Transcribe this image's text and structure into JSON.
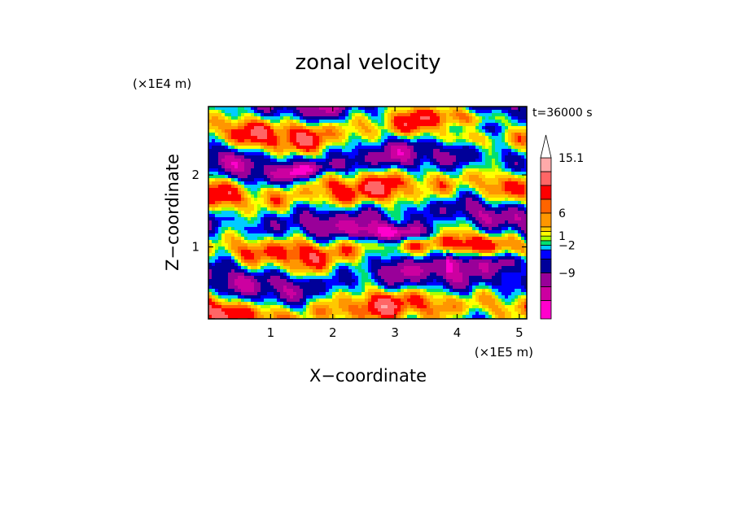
{
  "chart_data": {
    "type": "heatmap",
    "title": "zonal velocity",
    "xlabel": "X−coordinate",
    "ylabel": "Z−coordinate",
    "x_unit": "(×1E5 m)",
    "y_unit": "(×1E4 m)",
    "time_label": "t=36000 s",
    "xlim": [
      0,
      5.12
    ],
    "ylim": [
      0,
      2.95
    ],
    "x_ticks": [
      "1",
      "2",
      "3",
      "4",
      "5"
    ],
    "y_ticks": [
      "1",
      "2"
    ],
    "colorbar": {
      "labels": [
        "15.1",
        "6",
        "1",
        "−2",
        "−9"
      ],
      "colors": [
        "#ff00cc",
        "#cc00a0",
        "#990099",
        "#000099",
        "#0000ff",
        "#00ccff",
        "#00e070",
        "#aaff00",
        "#ffff00",
        "#ffc800",
        "#ff9600",
        "#ff6400",
        "#ff0000",
        "#ff6666",
        "#ffaaaa"
      ]
    }
  }
}
